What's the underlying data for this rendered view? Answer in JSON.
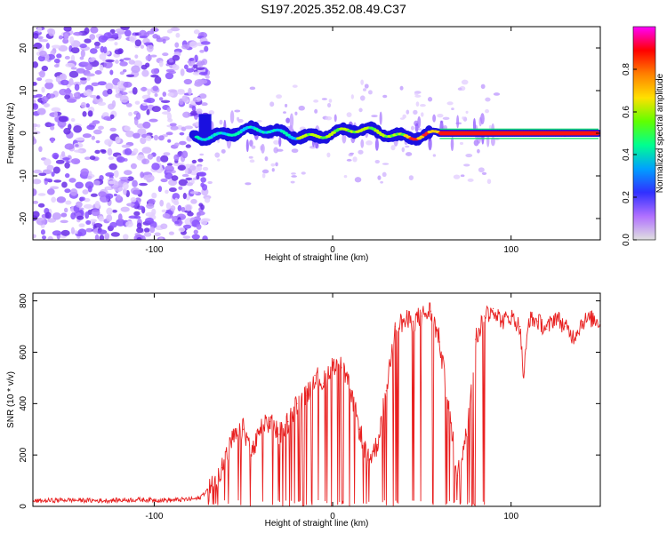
{
  "title": "S197.2025.352.08.49.C37",
  "colors": {
    "spectral_palette": [
      "#e0e0e0",
      "#b070ff",
      "#3030ff",
      "#00a0ff",
      "#00ff90",
      "#60ff00",
      "#ffe000",
      "#ff8000",
      "#ff0000",
      "#ff00ff"
    ],
    "snr_line": "#e82020",
    "grid_bg": "#ffffff"
  },
  "chart_data": [
    {
      "type": "heatmap",
      "title": "S197.2025.352.08.49.C37",
      "xlabel": "Height of straight line (km)",
      "ylabel": "Frequency (Hz)",
      "xlim": [
        -168,
        150
      ],
      "ylim": [
        -25,
        25
      ],
      "x_ticks": [
        "-100",
        "0",
        "100"
      ],
      "y_ticks": [
        "-20",
        "-10",
        "0",
        "10",
        "20"
      ],
      "colorbar": {
        "label": "Normalized spectral amplitude",
        "range": [
          0,
          1
        ],
        "ticks": [
          "0.0",
          "0.2",
          "0.4",
          "0.6",
          "0.8"
        ]
      },
      "features": {
        "noise_region_x": [
          -168,
          -76
        ],
        "signal_center_hz": 0,
        "signal_onset_km": -78,
        "steady_band_from_km": 60
      }
    },
    {
      "type": "line",
      "xlabel": "Height of straight line (km)",
      "ylabel": "SNR (10 * v/v)",
      "xlim": [
        -168,
        150
      ],
      "ylim": [
        0,
        830
      ],
      "x_ticks": [
        "-100",
        "0",
        "100"
      ],
      "y_ticks": [
        "0",
        "200",
        "400",
        "600",
        "800"
      ],
      "x": [
        -168,
        -150,
        -130,
        -110,
        -90,
        -75,
        -68,
        -62,
        -56,
        -50,
        -45,
        -40,
        -35,
        -30,
        -25,
        -20,
        -15,
        -10,
        -5,
        0,
        5,
        10,
        15,
        20,
        25,
        30,
        35,
        40,
        45,
        50,
        55,
        60,
        65,
        70,
        75,
        80,
        85,
        90,
        95,
        100,
        105,
        107,
        110,
        115,
        120,
        125,
        130,
        135,
        140,
        145,
        150
      ],
      "values": [
        20,
        25,
        22,
        26,
        24,
        30,
        80,
        150,
        260,
        300,
        210,
        300,
        330,
        280,
        330,
        400,
        430,
        510,
        480,
        560,
        540,
        450,
        300,
        180,
        240,
        450,
        700,
        720,
        720,
        740,
        760,
        640,
        380,
        120,
        280,
        650,
        740,
        770,
        720,
        740,
        700,
        500,
        730,
        720,
        690,
        740,
        700,
        660,
        720,
        730,
        720
      ]
    }
  ]
}
